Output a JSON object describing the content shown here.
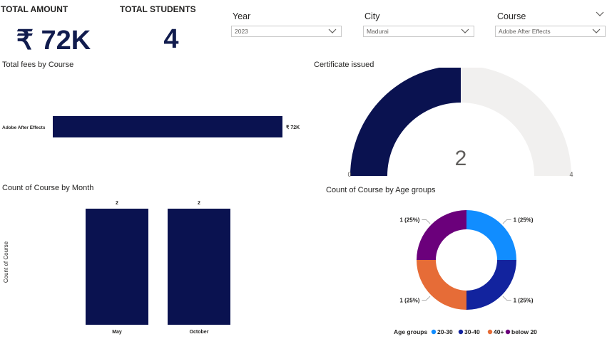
{
  "cards": {
    "total_amount": {
      "label": "TOTAL AMOUNT",
      "value": "₹ 72K"
    },
    "total_students": {
      "label": "TOTAL STUDENTS",
      "value": "4"
    }
  },
  "slicers": {
    "year": {
      "title": "Year",
      "value": "2023"
    },
    "city": {
      "title": "City",
      "value": "Madurai"
    },
    "course": {
      "title": "Course",
      "value": "Adobe After Effects"
    }
  },
  "colors": {
    "navy": "#0a1250",
    "gauge_bg": "#f1f0ef",
    "age_20_30": "#118dff",
    "age_30_40": "#12239e",
    "age_40_plus": "#e66c37",
    "age_below_20": "#6b007b"
  },
  "fees_chart": {
    "title": "Total fees by Course",
    "chart_data": {
      "type": "bar",
      "orientation": "horizontal",
      "categories": [
        "Adobe After Effects"
      ],
      "values": [
        72000
      ],
      "data_labels": [
        "₹ 72K"
      ]
    }
  },
  "gauge": {
    "title": "Certificate issued",
    "value": 2,
    "value_label": "2",
    "min_label": "0",
    "max_label": "4",
    "min": 0,
    "max": 4
  },
  "month_chart": {
    "title": "Count of Course by Month",
    "ylabel": "Count of Course",
    "chart_data": {
      "type": "bar",
      "categories": [
        "May",
        "October"
      ],
      "values": [
        2,
        2
      ],
      "data_labels": [
        "2",
        "2"
      ]
    }
  },
  "age_chart": {
    "title": "Count of Course by Age groups",
    "legend_title": "Age groups",
    "chart_data": {
      "type": "pie",
      "donut": true,
      "categories": [
        "20-30",
        "30-40",
        "40+",
        "below 20"
      ],
      "values": [
        1,
        1,
        1,
        1
      ],
      "data_labels": [
        "1 (25%)",
        "1 (25%)",
        "1 (25%)",
        "1 (25%)"
      ]
    }
  }
}
